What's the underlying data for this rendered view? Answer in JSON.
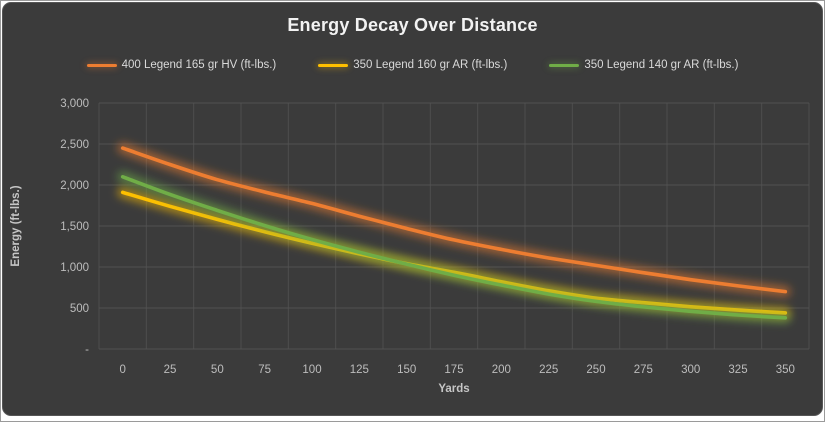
{
  "frame": {
    "page_background": "#FFFFFF",
    "chart_background": "#3B3B3B",
    "outer_border": "#9A9A9A"
  },
  "chart_data": {
    "type": "line",
    "title": "Energy Decay Over Distance",
    "xlabel": "Yards",
    "ylabel": "Energy (ft-lbs.)",
    "x": [
      0,
      25,
      50,
      75,
      100,
      125,
      150,
      175,
      200,
      225,
      250,
      275,
      300,
      325,
      350
    ],
    "x_tick_labels": [
      "0",
      "25",
      "50",
      "75",
      "100",
      "125",
      "150",
      "175",
      "200",
      "225",
      "250",
      "275",
      "300",
      "325",
      "350"
    ],
    "y_ticks": [
      0,
      500,
      1000,
      1500,
      2000,
      2500,
      3000
    ],
    "y_tick_labels": [
      "-",
      "500",
      "1,000",
      "1,500",
      "2,000",
      "2,500",
      "3,000"
    ],
    "ylim": [
      0,
      3000
    ],
    "grid": true,
    "smoothed_lines": true,
    "glow_effect": true,
    "legend_position": "top",
    "series": [
      {
        "name": "400 Legend 165 gr HV (ft-lbs.)",
        "color": "#ED7D31",
        "values": [
          2450,
          2250,
          2065,
          1915,
          1775,
          1620,
          1470,
          1330,
          1215,
          1110,
          1020,
          930,
          845,
          770,
          700
        ]
      },
      {
        "name": "350 Legend 160 gr AR (ft-lbs.)",
        "color": "#FFC000",
        "values": [
          1910,
          1740,
          1580,
          1430,
          1290,
          1160,
          1040,
          935,
          820,
          710,
          620,
          565,
          515,
          475,
          440
        ]
      },
      {
        "name": "350 Legend 140 gr AR (ft-lbs.)",
        "color": "#70AD47",
        "values": [
          2100,
          1885,
          1690,
          1505,
          1335,
          1180,
          1035,
          900,
          780,
          670,
          580,
          515,
          460,
          415,
          380
        ]
      }
    ],
    "styles": {
      "grid_color": "#525252",
      "tick_label_color": "#BDBDBD",
      "title_color": "#F2F2F2",
      "axis_title_color": "#C6C6C6",
      "legend_text_color": "#D9D9D9"
    }
  }
}
